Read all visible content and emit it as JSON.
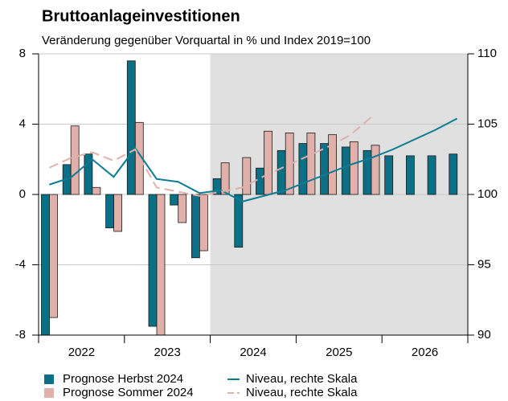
{
  "chart_data": {
    "type": "bar",
    "title": "Bruttoanlageinvestitionen",
    "subtitle": "Veränderung gegenüber Vorquartal in % und Index 2019=100",
    "categories": [
      null,
      null,
      null,
      null,
      null,
      null,
      null,
      null,
      null,
      null,
      null,
      null,
      null,
      null,
      null,
      null,
      null,
      null,
      null,
      null
    ],
    "x_labels": [
      "2022",
      "2023",
      "2024",
      "2025",
      "2026"
    ],
    "shade_from": 8,
    "ylim": [
      -8,
      8
    ],
    "yticks": [
      -8,
      -4,
      0,
      4,
      8
    ],
    "y2lim": [
      90,
      110
    ],
    "y2ticks": [
      90,
      95,
      100,
      105,
      110
    ],
    "grid": true,
    "series": [
      {
        "name": "Prognose Herbst 2024",
        "type": "bar",
        "color": "#0b6f86",
        "values": [
          -8,
          1.7,
          2.3,
          -1.9,
          7.6,
          -7.5,
          -0.6,
          -3.6,
          0.9,
          -3.0,
          1.5,
          2.5,
          2.9,
          2.9,
          2.7,
          2.5,
          2.2,
          2.2,
          2.2,
          2.3
        ]
      },
      {
        "name": "Prognose Sommer 2024",
        "type": "bar",
        "color": "#e0b0ab",
        "values": [
          -7.0,
          3.9,
          0.4,
          -2.1,
          4.1,
          -8,
          -1.6,
          -3.2,
          1.8,
          2.1,
          3.6,
          3.5,
          3.5,
          3.4,
          3.0,
          2.8,
          null,
          null,
          null,
          null
        ]
      },
      {
        "name": "Niveau, rechte Skala",
        "type": "line",
        "axis": "y2",
        "color": "#0b7c93",
        "values": [
          100.7,
          101.2,
          102.5,
          101.25,
          103.3,
          101.1,
          100.9,
          100.1,
          100.3,
          99.5,
          99.9,
          100.3,
          100.9,
          101.5,
          102.1,
          102.6,
          103.2,
          103.9,
          104.6,
          105.4
        ]
      },
      {
        "name": "Niveau, rechte Skala",
        "type": "line",
        "axis": "y2",
        "dashed": true,
        "color": "#e0b0ab",
        "values": [
          101.9,
          102.6,
          103.0,
          102.4,
          103.2,
          100.5,
          100.2,
          99.9,
          100.2,
          100.5,
          101.3,
          102.0,
          102.7,
          103.4,
          104.2,
          105.5,
          null,
          null,
          null,
          null
        ]
      }
    ]
  }
}
